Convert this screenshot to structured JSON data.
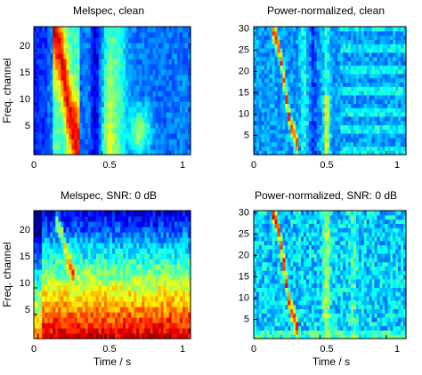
{
  "chart_data": [
    {
      "type": "heatmap",
      "title": "Melspec, clean",
      "xlabel": "",
      "ylabel": "Freq. channel",
      "xlim": [
        0,
        1.15
      ],
      "ylim": [
        0.5,
        24.5
      ],
      "xticks": [
        0,
        0.5,
        1
      ],
      "yticks": [
        5,
        10,
        15,
        20
      ],
      "xtick_labels": [
        "0",
        "0.5",
        "1"
      ],
      "ytick_labels": [
        "5",
        "10",
        "15",
        "20"
      ],
      "colormap": "jet",
      "n_channels": 24,
      "grid": false,
      "description": "Strong energy bands at 0.15-0.3 s (curving from channel 22 down to channel 2), a weaker burst near 0.5-0.6 s, and a band near 0.8 s across the lower channels."
    },
    {
      "type": "heatmap",
      "title": "Power-normalized, clean",
      "xlabel": "",
      "ylabel": "",
      "xlim": [
        0,
        1.15
      ],
      "ylim": [
        0.5,
        30.5
      ],
      "xticks": [
        0,
        0.5,
        1
      ],
      "yticks": [
        5,
        10,
        15,
        20,
        25,
        30
      ],
      "xtick_labels": [
        "0",
        "0.5",
        "1"
      ],
      "ytick_labels": [
        "5",
        "10",
        "15",
        "20",
        "25",
        "30"
      ],
      "colormap": "jet",
      "n_channels": 30,
      "grid": false,
      "description": "Thin red/yellow sinuous track at about 0.2-0.3 s from channel 29 to channel 2, short activity at 0.55 s, mostly blue background with faint horizontal stripes after 0.6 s."
    },
    {
      "type": "heatmap",
      "title": "Melspec, SNR: 0 dB",
      "xlabel": "Time / s",
      "ylabel": "Freq. channel",
      "xlim": [
        0,
        1.15
      ],
      "ylim": [
        0.5,
        24.5
      ],
      "xticks": [
        0,
        0.5,
        1
      ],
      "yticks": [
        5,
        10,
        15,
        20
      ],
      "xtick_labels": [
        "0",
        "0.5",
        "1"
      ],
      "ytick_labels": [
        "5",
        "10",
        "15",
        "20"
      ],
      "colormap": "jet",
      "n_channels": 24,
      "grid": false,
      "description": "Noise dominates: red at low channels (1-7), orange/yellow up to about channel 15, blue above; a red curved speech trace from channel 22 to 12 near 0.2-0.3 s."
    },
    {
      "type": "heatmap",
      "title": "Power-normalized, SNR: 0 dB",
      "xlabel": "Time / s",
      "ylabel": "",
      "xlim": [
        0,
        1.15
      ],
      "ylim": [
        0.5,
        30.5
      ],
      "xticks": [
        0,
        0.5,
        1
      ],
      "yticks": [
        5,
        10,
        15,
        20,
        25,
        30
      ],
      "xtick_labels": [
        "0",
        "0.5",
        "1"
      ],
      "ytick_labels": [
        "5",
        "10",
        "15",
        "20",
        "25",
        "30"
      ],
      "colormap": "jet",
      "n_channels": 30,
      "grid": false,
      "description": "Mostly blue/cyan noise with a red curved trace at about 0.2-0.3 s from channel 28 to channel 3, lighter vertical streaks near 0.55 s and 0.75 s."
    }
  ]
}
